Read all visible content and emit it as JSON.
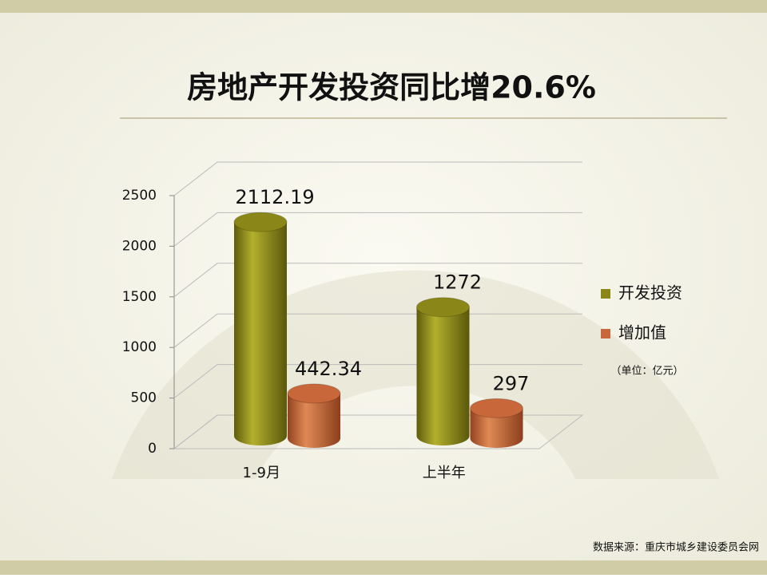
{
  "chart_data": {
    "type": "bar3d",
    "title": "房地产开发投资同比增20.6%",
    "categories": [
      "1-9月",
      "上半年"
    ],
    "series": [
      {
        "name": "开发投资",
        "color": "#8a8718",
        "values": [
          2112.19,
          1272
        ]
      },
      {
        "name": "增加值",
        "color": "#c8683a",
        "values": [
          442.34,
          297
        ]
      }
    ],
    "ylim": [
      0,
      2500
    ],
    "yticks": [
      0,
      500,
      1000,
      1500,
      2000,
      2500
    ],
    "grid": true,
    "legend": "right",
    "unit_note": "（单位：亿元）",
    "source": "数据来源：重庆市城乡建设委员会网"
  }
}
